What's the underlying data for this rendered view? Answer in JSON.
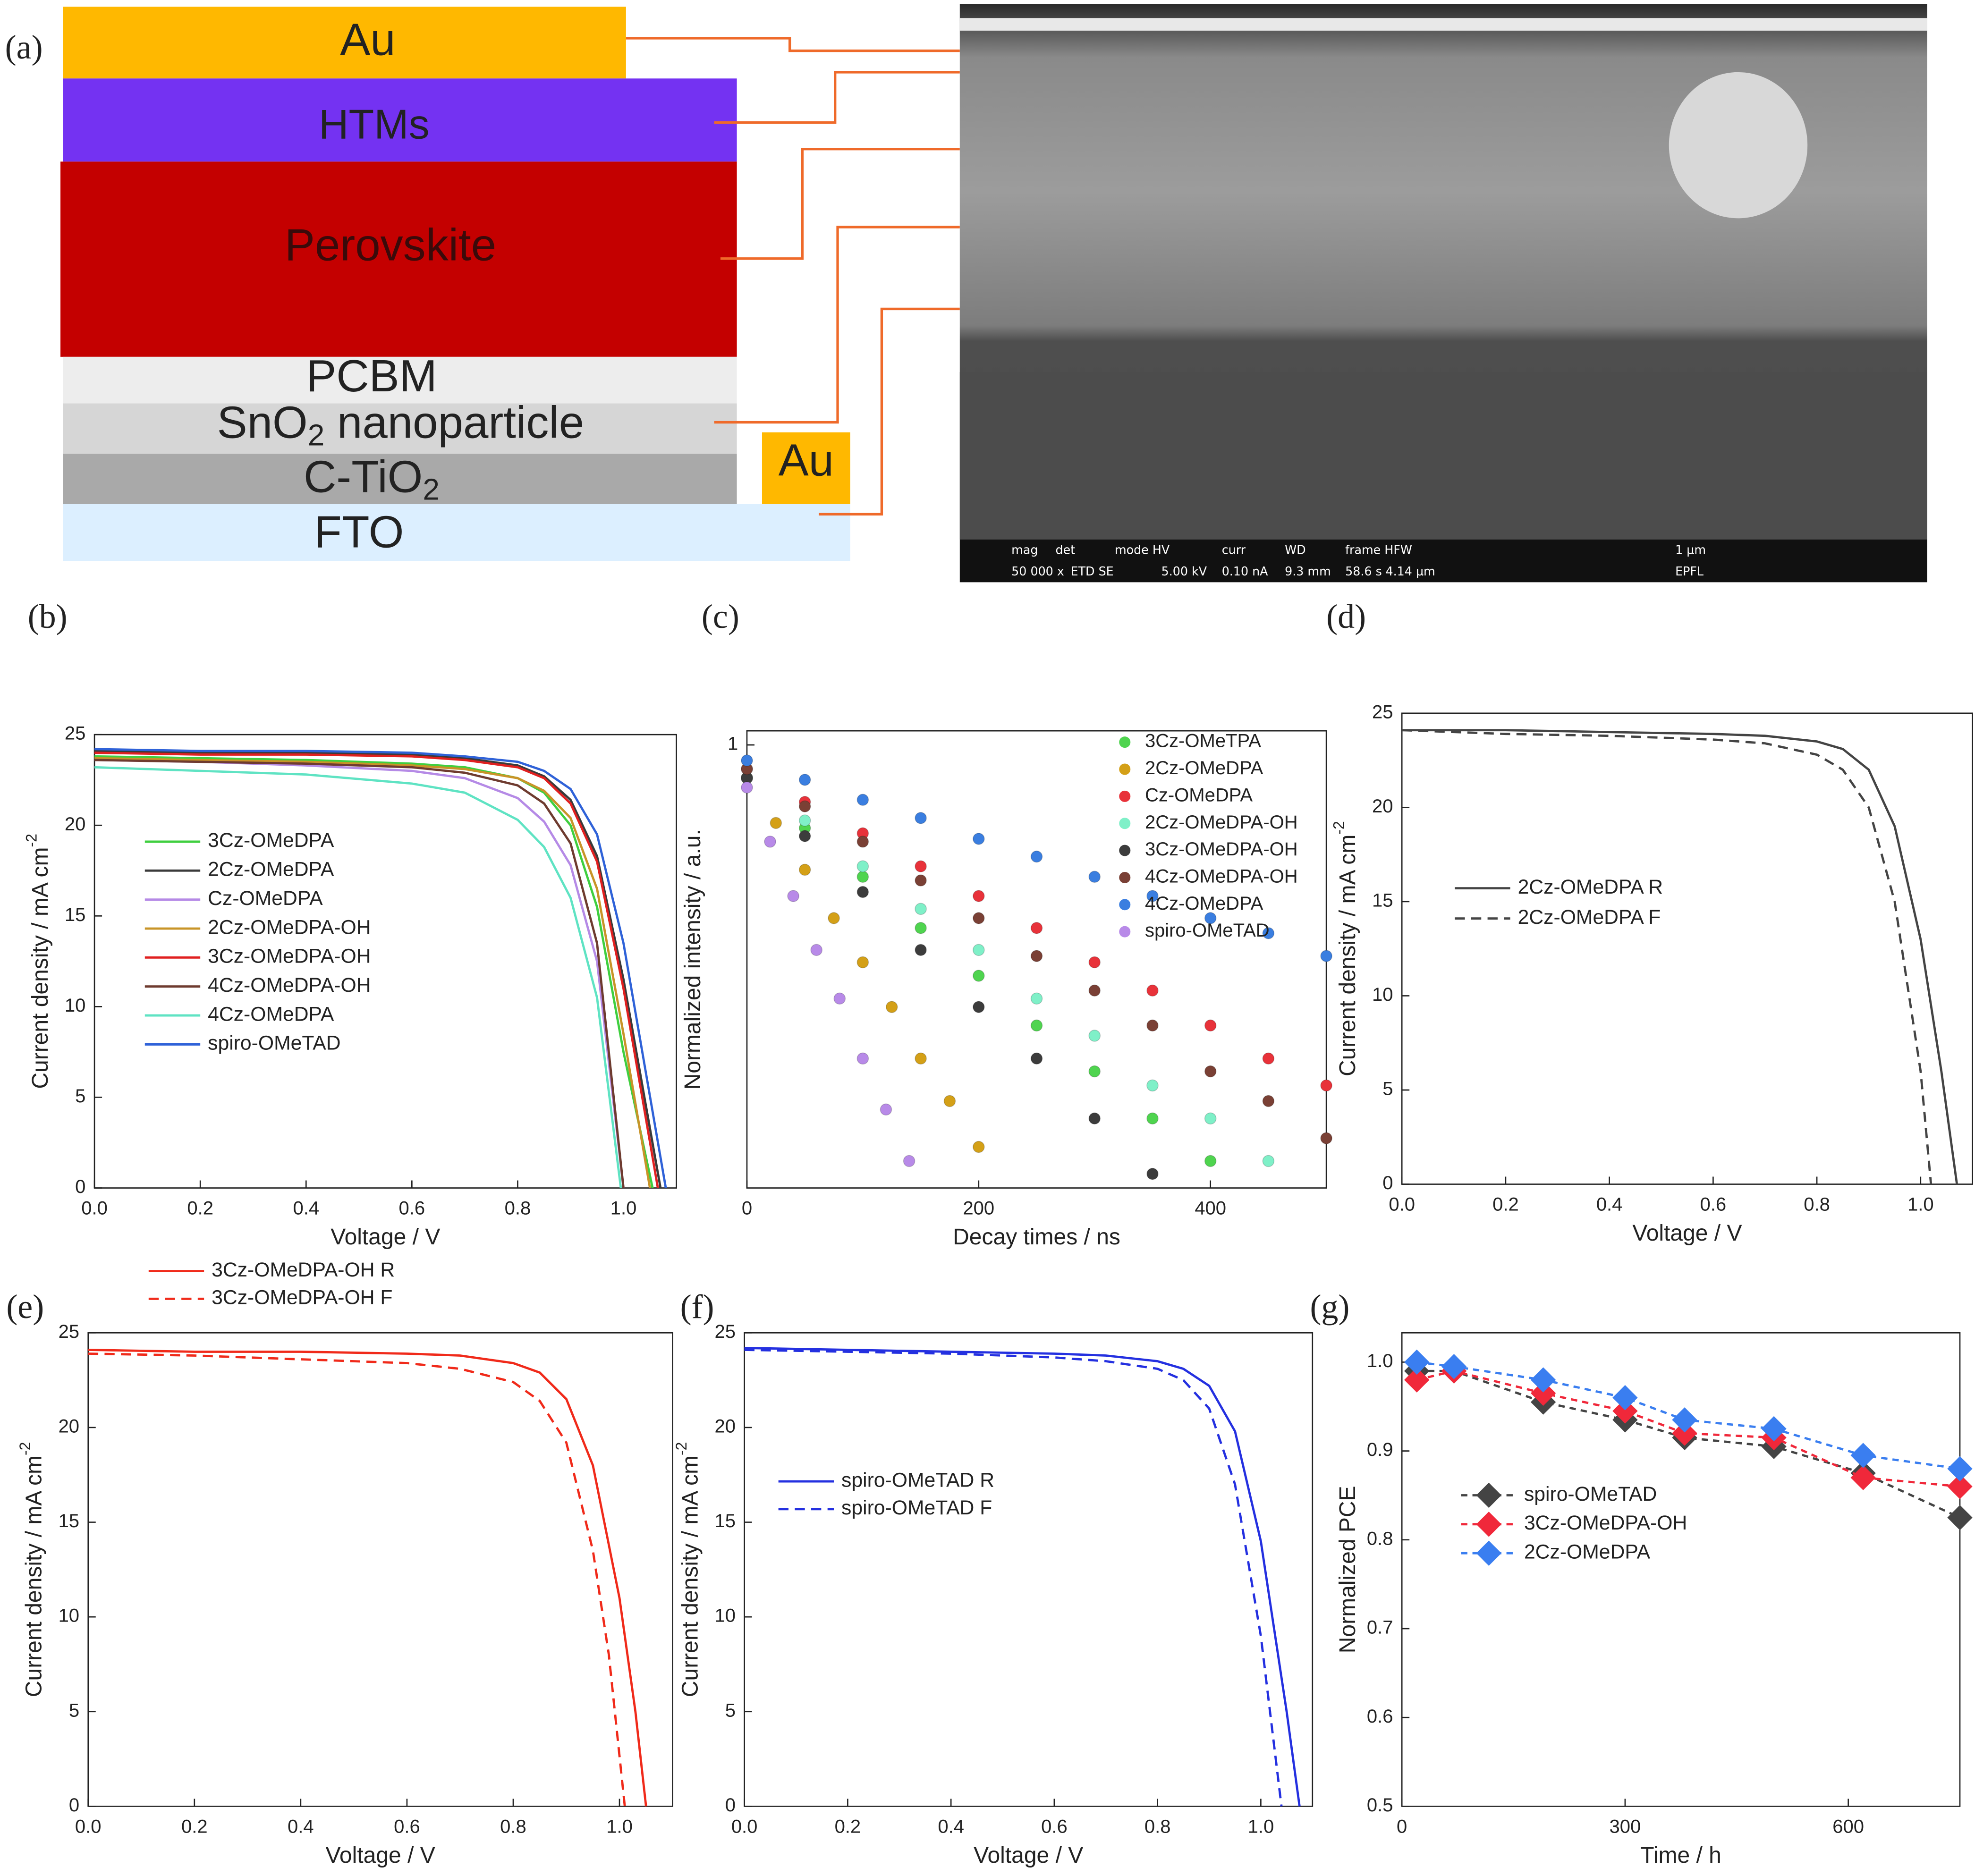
{
  "diagram": {
    "panel": "(a)",
    "layers": [
      {
        "parts": [
          {
            "text": "Au"
          }
        ]
      },
      {
        "parts": [
          {
            "text": "HTMs"
          }
        ]
      },
      {
        "parts": [
          {
            "text": "Perovskite"
          }
        ]
      },
      {
        "parts": [
          {
            "text": "PCBM"
          }
        ]
      },
      {
        "parts": [
          {
            "text": "SnO"
          },
          {
            "text": "2",
            "sub": true
          },
          {
            "text": " nanoparticle"
          }
        ]
      },
      {
        "parts": [
          {
            "text": "C-TiO"
          },
          {
            "text": "2",
            "sub": true
          }
        ]
      },
      {
        "parts": [
          {
            "text": "Au"
          }
        ]
      },
      {
        "parts": [
          {
            "text": "FTO"
          }
        ]
      }
    ],
    "sem_info": [
      "mag",
      "det",
      "mode HV",
      "curr",
      "WD",
      "frame HFW",
      "1 µm",
      "50 000 x",
      "ETD SE",
      "5.00 kV",
      "0.10 nA",
      "9.3 mm",
      "58.6 s",
      "4.14 µm",
      "EPFL"
    ]
  },
  "chart_data": [
    {
      "type": "line",
      "panel": "(b)",
      "x_label": "Voltage / V",
      "y_label": [
        {
          "text": "Current density / mA cm"
        },
        {
          "text": "-2",
          "sup": true
        }
      ],
      "xlim": [
        0,
        1.1
      ],
      "xticks": [
        {
          "value": 0,
          "label": "0.0"
        },
        0.2,
        0.4,
        0.6,
        0.8,
        {
          "value": 1,
          "label": "1.0"
        }
      ],
      "ylim": [
        0,
        25
      ],
      "yticks": [
        0,
        5,
        10,
        15,
        20,
        25
      ],
      "series": [
        {
          "name": "3Cz-OMeDPA",
          "color": "#3fcf3f",
          "x": [
            0,
            0.2,
            0.4,
            0.6,
            0.7,
            0.8,
            0.85,
            0.9,
            0.95,
            1.0,
            1.055
          ],
          "values": [
            23.8,
            23.7,
            23.6,
            23.4,
            23.2,
            22.6,
            21.8,
            20.0,
            15.5,
            7.5,
            0
          ]
        },
        {
          "name": "2Cz-OMeDPA",
          "color": "#3a3a3a",
          "x": [
            0,
            0.2,
            0.4,
            0.6,
            0.7,
            0.8,
            0.85,
            0.9,
            0.95,
            1.0,
            1.07
          ],
          "values": [
            24.1,
            24.0,
            24.0,
            23.9,
            23.7,
            23.3,
            22.7,
            21.4,
            18.3,
            11.5,
            0
          ]
        },
        {
          "name": "Cz-OMeDPA",
          "color": "#b58ae6",
          "x": [
            0,
            0.2,
            0.4,
            0.6,
            0.7,
            0.8,
            0.85,
            0.9,
            0.95,
            1.0
          ],
          "values": [
            23.6,
            23.5,
            23.3,
            23.0,
            22.6,
            21.5,
            20.2,
            17.8,
            12.5,
            0
          ]
        },
        {
          "name": "2Cz-OMeDPA-OH",
          "color": "#c89428",
          "x": [
            0,
            0.2,
            0.4,
            0.6,
            0.7,
            0.8,
            0.85,
            0.9,
            0.95,
            1.0,
            1.05
          ],
          "values": [
            23.7,
            23.6,
            23.5,
            23.3,
            23.1,
            22.6,
            21.9,
            20.4,
            16.5,
            8.5,
            0
          ]
        },
        {
          "name": "3Cz-OMeDPA-OH",
          "color": "#e02020",
          "x": [
            0,
            0.2,
            0.4,
            0.6,
            0.7,
            0.8,
            0.85,
            0.9,
            0.95,
            1.0,
            1.065
          ],
          "values": [
            24.0,
            23.9,
            23.9,
            23.8,
            23.6,
            23.2,
            22.6,
            21.2,
            18.0,
            11.0,
            0
          ]
        },
        {
          "name": "4Cz-OMeDPA-OH",
          "color": "#6e3b2f",
          "x": [
            0,
            0.2,
            0.4,
            0.6,
            0.7,
            0.8,
            0.85,
            0.9,
            0.95,
            1.0
          ],
          "values": [
            23.6,
            23.5,
            23.4,
            23.2,
            22.9,
            22.2,
            21.2,
            19.0,
            13.5,
            0
          ]
        },
        {
          "name": "4Cz-OMeDPA",
          "color": "#5fe3c3",
          "x": [
            0,
            0.2,
            0.4,
            0.6,
            0.7,
            0.8,
            0.85,
            0.9,
            0.95,
            0.995
          ],
          "values": [
            23.2,
            23.0,
            22.8,
            22.3,
            21.8,
            20.3,
            18.8,
            16.0,
            10.5,
            0
          ]
        },
        {
          "name": "spiro-OMeTAD",
          "color": "#2f62d8",
          "x": [
            0,
            0.2,
            0.4,
            0.6,
            0.7,
            0.8,
            0.85,
            0.9,
            0.95,
            1.0,
            1.08
          ],
          "values": [
            24.2,
            24.1,
            24.1,
            24.0,
            23.8,
            23.5,
            23.0,
            22.0,
            19.5,
            13.5,
            0
          ]
        }
      ]
    },
    {
      "type": "scatter",
      "panel": "(c)",
      "x_label": "Decay times / ns",
      "y_label": [
        {
          "text": "Normalized intensity / a.u."
        }
      ],
      "xlim": [
        0,
        500
      ],
      "xticks": [
        0,
        200,
        400
      ],
      "ylim": [
        0.05,
        1.1
      ],
      "yticks": [
        1
      ],
      "log_y": true,
      "series": [
        {
          "name": "3Cz-OMeTPA",
          "color": "#4fd44f",
          "x": [
            0,
            50,
            100,
            150,
            200,
            250,
            300,
            350,
            400
          ],
          "values": [
            0.8,
            0.57,
            0.41,
            0.29,
            0.21,
            0.15,
            0.11,
            0.08,
            0.06
          ]
        },
        {
          "name": "2Cz-OMeDPA",
          "color": "#d4a017",
          "x": [
            0,
            25,
            50,
            75,
            100,
            125,
            150,
            175,
            200
          ],
          "values": [
            0.8,
            0.59,
            0.43,
            0.31,
            0.23,
            0.17,
            0.12,
            0.09,
            0.066
          ]
        },
        {
          "name": "Cz-OMeDPA",
          "color": "#e8323a",
          "x": [
            0,
            50,
            100,
            150,
            200,
            250,
            300,
            350,
            400,
            450,
            500
          ],
          "values": [
            0.85,
            0.68,
            0.55,
            0.44,
            0.36,
            0.29,
            0.23,
            0.19,
            0.15,
            0.12,
            0.1
          ]
        },
        {
          "name": "2Cz-OMeDPA-OH",
          "color": "#7ff0c8",
          "x": [
            0,
            50,
            100,
            150,
            200,
            250,
            300,
            350,
            400,
            450
          ],
          "values": [
            0.8,
            0.6,
            0.44,
            0.33,
            0.25,
            0.18,
            0.14,
            0.1,
            0.08,
            0.06
          ]
        },
        {
          "name": "3Cz-OMeDPA-OH",
          "color": "#3c3c3c",
          "x": [
            0,
            50,
            100,
            150,
            200,
            250,
            300,
            350
          ],
          "values": [
            0.8,
            0.54,
            0.37,
            0.25,
            0.17,
            0.12,
            0.08,
            0.055
          ]
        },
        {
          "name": "4Cz-OMeDPA-OH",
          "color": "#7a4035",
          "x": [
            0,
            50,
            100,
            150,
            200,
            250,
            300,
            350,
            400,
            450,
            500
          ],
          "values": [
            0.85,
            0.66,
            0.52,
            0.4,
            0.31,
            0.24,
            0.19,
            0.15,
            0.11,
            0.09,
            0.07
          ]
        },
        {
          "name": "4Cz-OMeDPA",
          "color": "#3a7ee0",
          "x": [
            0,
            50,
            100,
            150,
            200,
            250,
            300,
            350,
            400,
            450,
            500
          ],
          "values": [
            0.9,
            0.79,
            0.69,
            0.61,
            0.53,
            0.47,
            0.41,
            0.36,
            0.31,
            0.28,
            0.24
          ]
        },
        {
          "name": "spiro-OMeTAD",
          "color": "#b88ae8",
          "x": [
            0,
            20,
            40,
            60,
            80,
            100,
            120,
            140
          ],
          "values": [
            0.75,
            0.52,
            0.36,
            0.25,
            0.18,
            0.12,
            0.085,
            0.06
          ]
        }
      ]
    },
    {
      "type": "line",
      "panel": "(d)",
      "x_label": "Voltage / V",
      "y_label": [
        {
          "text": "Current density / mA cm"
        },
        {
          "text": "-2",
          "sup": true
        }
      ],
      "xlim": [
        0,
        1.1
      ],
      "xticks": [
        {
          "value": 0,
          "label": "0.0"
        },
        0.2,
        0.4,
        0.6,
        0.8,
        {
          "value": 1,
          "label": "1.0"
        }
      ],
      "ylim": [
        0,
        25
      ],
      "yticks": [
        0,
        5,
        10,
        15,
        20,
        25
      ],
      "series": [
        {
          "name": "2Cz-OMeDPA R",
          "color": "#444444",
          "x": [
            0,
            0.2,
            0.4,
            0.6,
            0.7,
            0.8,
            0.85,
            0.9,
            0.95,
            1.0,
            1.04,
            1.07
          ],
          "values": [
            24.1,
            24.1,
            24.0,
            23.9,
            23.8,
            23.5,
            23.1,
            22.0,
            19.0,
            13.0,
            6.0,
            0
          ]
        },
        {
          "name": "2Cz-OMeDPA F",
          "color": "#444444",
          "dash": true,
          "x": [
            0,
            0.2,
            0.4,
            0.6,
            0.7,
            0.8,
            0.85,
            0.9,
            0.95,
            1.0,
            1.02
          ],
          "values": [
            24.1,
            23.9,
            23.8,
            23.6,
            23.4,
            22.8,
            22.0,
            20.0,
            15.0,
            6.0,
            0
          ]
        }
      ]
    },
    {
      "type": "line",
      "panel": "(e)",
      "x_label": "Voltage / V",
      "y_label": [
        {
          "text": "Current density / mA cm"
        },
        {
          "text": "-2",
          "sup": true
        }
      ],
      "xlim": [
        0,
        1.1
      ],
      "xticks": [
        {
          "value": 0,
          "label": "0.0"
        },
        0.2,
        0.4,
        0.6,
        0.8,
        {
          "value": 1,
          "label": "1.0"
        }
      ],
      "ylim": [
        0,
        25
      ],
      "yticks": [
        0,
        5,
        10,
        15,
        20,
        25
      ],
      "series": [
        {
          "name": "3Cz-OMeDPA-OH R",
          "color": "#f02a1a",
          "x": [
            0,
            0.2,
            0.4,
            0.6,
            0.7,
            0.8,
            0.85,
            0.9,
            0.95,
            1.0,
            1.03,
            1.05
          ],
          "values": [
            24.1,
            24.0,
            24.0,
            23.9,
            23.8,
            23.4,
            22.9,
            21.5,
            18.0,
            11.0,
            5.0,
            0
          ]
        },
        {
          "name": "3Cz-OMeDPA-OH F",
          "color": "#f02a1a",
          "dash": true,
          "x": [
            0,
            0.2,
            0.4,
            0.6,
            0.7,
            0.8,
            0.85,
            0.9,
            0.95,
            0.98,
            1.01
          ],
          "values": [
            23.9,
            23.8,
            23.6,
            23.4,
            23.1,
            22.4,
            21.4,
            19.2,
            13.5,
            8.0,
            0
          ]
        }
      ]
    },
    {
      "type": "line",
      "panel": "(f)",
      "x_label": "Voltage / V",
      "y_label": [
        {
          "text": "Current density / mA cm"
        },
        {
          "text": "-2",
          "sup": true
        }
      ],
      "xlim": [
        0,
        1.1
      ],
      "xticks": [
        {
          "value": 0,
          "label": "0.0"
        },
        0.2,
        0.4,
        0.6,
        0.8,
        {
          "value": 1,
          "label": "1.0"
        }
      ],
      "ylim": [
        0,
        25
      ],
      "yticks": [
        0,
        5,
        10,
        15,
        20,
        25
      ],
      "series": [
        {
          "name": "spiro-OMeTAD R",
          "color": "#2430e0",
          "x": [
            0,
            0.2,
            0.4,
            0.6,
            0.7,
            0.8,
            0.85,
            0.9,
            0.95,
            1.0,
            1.05,
            1.075
          ],
          "values": [
            24.2,
            24.1,
            24.0,
            23.9,
            23.8,
            23.5,
            23.1,
            22.2,
            19.8,
            14.0,
            5.0,
            0
          ]
        },
        {
          "name": "spiro-OMeTAD F",
          "color": "#2430e0",
          "dash": true,
          "x": [
            0,
            0.2,
            0.4,
            0.6,
            0.7,
            0.8,
            0.85,
            0.9,
            0.95,
            1.0,
            1.04
          ],
          "values": [
            24.1,
            24.0,
            23.9,
            23.7,
            23.5,
            23.1,
            22.5,
            21.0,
            17.0,
            9.0,
            0
          ]
        }
      ]
    },
    {
      "type": "line",
      "panel": "(g)",
      "markers": "diamond",
      "x_label": "Time / h",
      "y_label": [
        {
          "text": "Normalized PCE"
        }
      ],
      "xlim": [
        0,
        750
      ],
      "xticks": [
        0,
        300,
        600
      ],
      "ylim": [
        0.5,
        1.033
      ],
      "yticks": [
        0.5,
        0.6,
        0.7,
        0.8,
        0.9,
        {
          "value": 1,
          "label": "1.0"
        }
      ],
      "x": [
        20,
        70,
        190,
        300,
        380,
        500,
        620,
        750
      ],
      "series": [
        {
          "name": "spiro-OMeTAD",
          "color": "#444444",
          "dash": true,
          "values": [
            0.99,
            0.99,
            0.955,
            0.935,
            0.915,
            0.905,
            0.875,
            0.825
          ]
        },
        {
          "name": "3Cz-OMeDPA-OH",
          "color": "#f0283a",
          "dash": true,
          "values": [
            0.98,
            0.99,
            0.965,
            0.945,
            0.92,
            0.915,
            0.87,
            0.86
          ]
        },
        {
          "name": "2Cz-OMeDPA",
          "color": "#3a7ef0",
          "dash": true,
          "values": [
            1.0,
            0.995,
            0.98,
            0.96,
            0.935,
            0.925,
            0.895,
            0.88
          ]
        }
      ]
    }
  ]
}
